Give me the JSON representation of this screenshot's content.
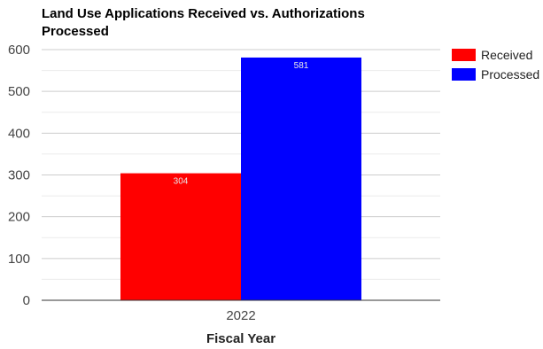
{
  "chart_data": {
    "type": "bar",
    "title": "Land Use Applications Received vs. Authorizations Processed",
    "xlabel": "Fiscal Year",
    "ylabel": "",
    "categories": [
      "2022"
    ],
    "series": [
      {
        "name": "Received",
        "values": [
          304
        ],
        "color": "#ff0000"
      },
      {
        "name": "Processed",
        "values": [
          581
        ],
        "color": "#0000ff"
      }
    ],
    "ylim": [
      0,
      600
    ],
    "yticks": [
      0,
      100,
      200,
      300,
      400,
      500,
      600
    ],
    "grid": true,
    "legend": "right"
  }
}
